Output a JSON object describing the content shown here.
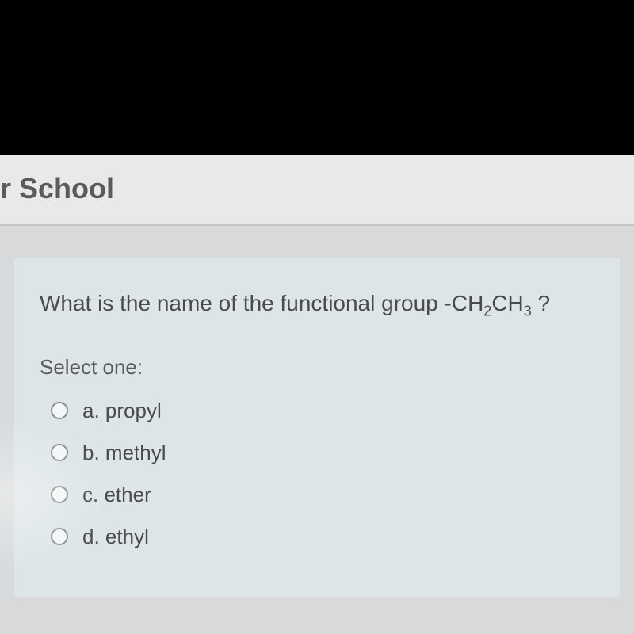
{
  "header": {
    "title_fragment": "r School"
  },
  "question": {
    "text_prefix": "What is the name of the functional group -CH",
    "formula_sub1": "2",
    "formula_mid": "CH",
    "formula_sub2": "3",
    "text_suffix": " ?",
    "select_prompt": "Select one:",
    "options": [
      {
        "letter": "a.",
        "text": "propyl",
        "selected": false
      },
      {
        "letter": "b.",
        "text": "methyl",
        "selected": false
      },
      {
        "letter": "c.",
        "text": "ether",
        "selected": false
      },
      {
        "letter": "d.",
        "text": "ethyl",
        "selected": false
      }
    ]
  },
  "colors": {
    "black_bar": "#000000",
    "page_bg": "#d8d9da",
    "header_bg": "#e8e9ea",
    "card_bg": "#dde5e8",
    "text_dark": "#4a4b4c",
    "text_mid": "#5a5b5c",
    "radio_border": "#8a8b8c"
  },
  "typography": {
    "header_fontsize": 36,
    "question_fontsize": 28,
    "prompt_fontsize": 26,
    "option_fontsize": 26,
    "subscript_fontsize": 18
  }
}
